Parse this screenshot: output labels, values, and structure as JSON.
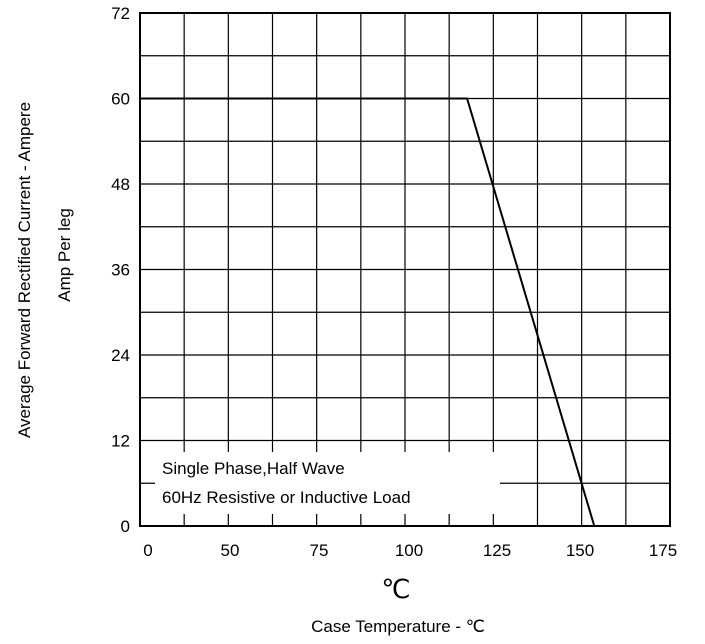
{
  "chart_data": {
    "type": "line",
    "title": "",
    "xlabel": "Case Temperature - ℃",
    "xunit": "℃",
    "ylabel_line1": "Average Forward Rectified Current - Ampere",
    "ylabel_line2": "Amp  Per leg",
    "xlim": [
      0,
      175
    ],
    "ylim": [
      0,
      72
    ],
    "x_ticks": [
      0,
      50,
      75,
      100,
      125,
      150,
      175
    ],
    "x_tick_labels": [
      "0",
      "50",
      "75",
      "100",
      "125",
      "150",
      "175"
    ],
    "y_ticks": [
      0,
      12,
      24,
      36,
      48,
      60,
      72
    ],
    "y_tick_labels": [
      "0",
      "12",
      "24",
      "36",
      "48",
      "60",
      "72"
    ],
    "grid": true,
    "series": [
      {
        "x": [
          0,
          108,
          150
        ],
        "y": [
          60,
          60,
          0
        ]
      }
    ],
    "annotations": [
      "Single Phase,Half Wave",
      "60Hz Resistive or Inductive Load"
    ]
  }
}
